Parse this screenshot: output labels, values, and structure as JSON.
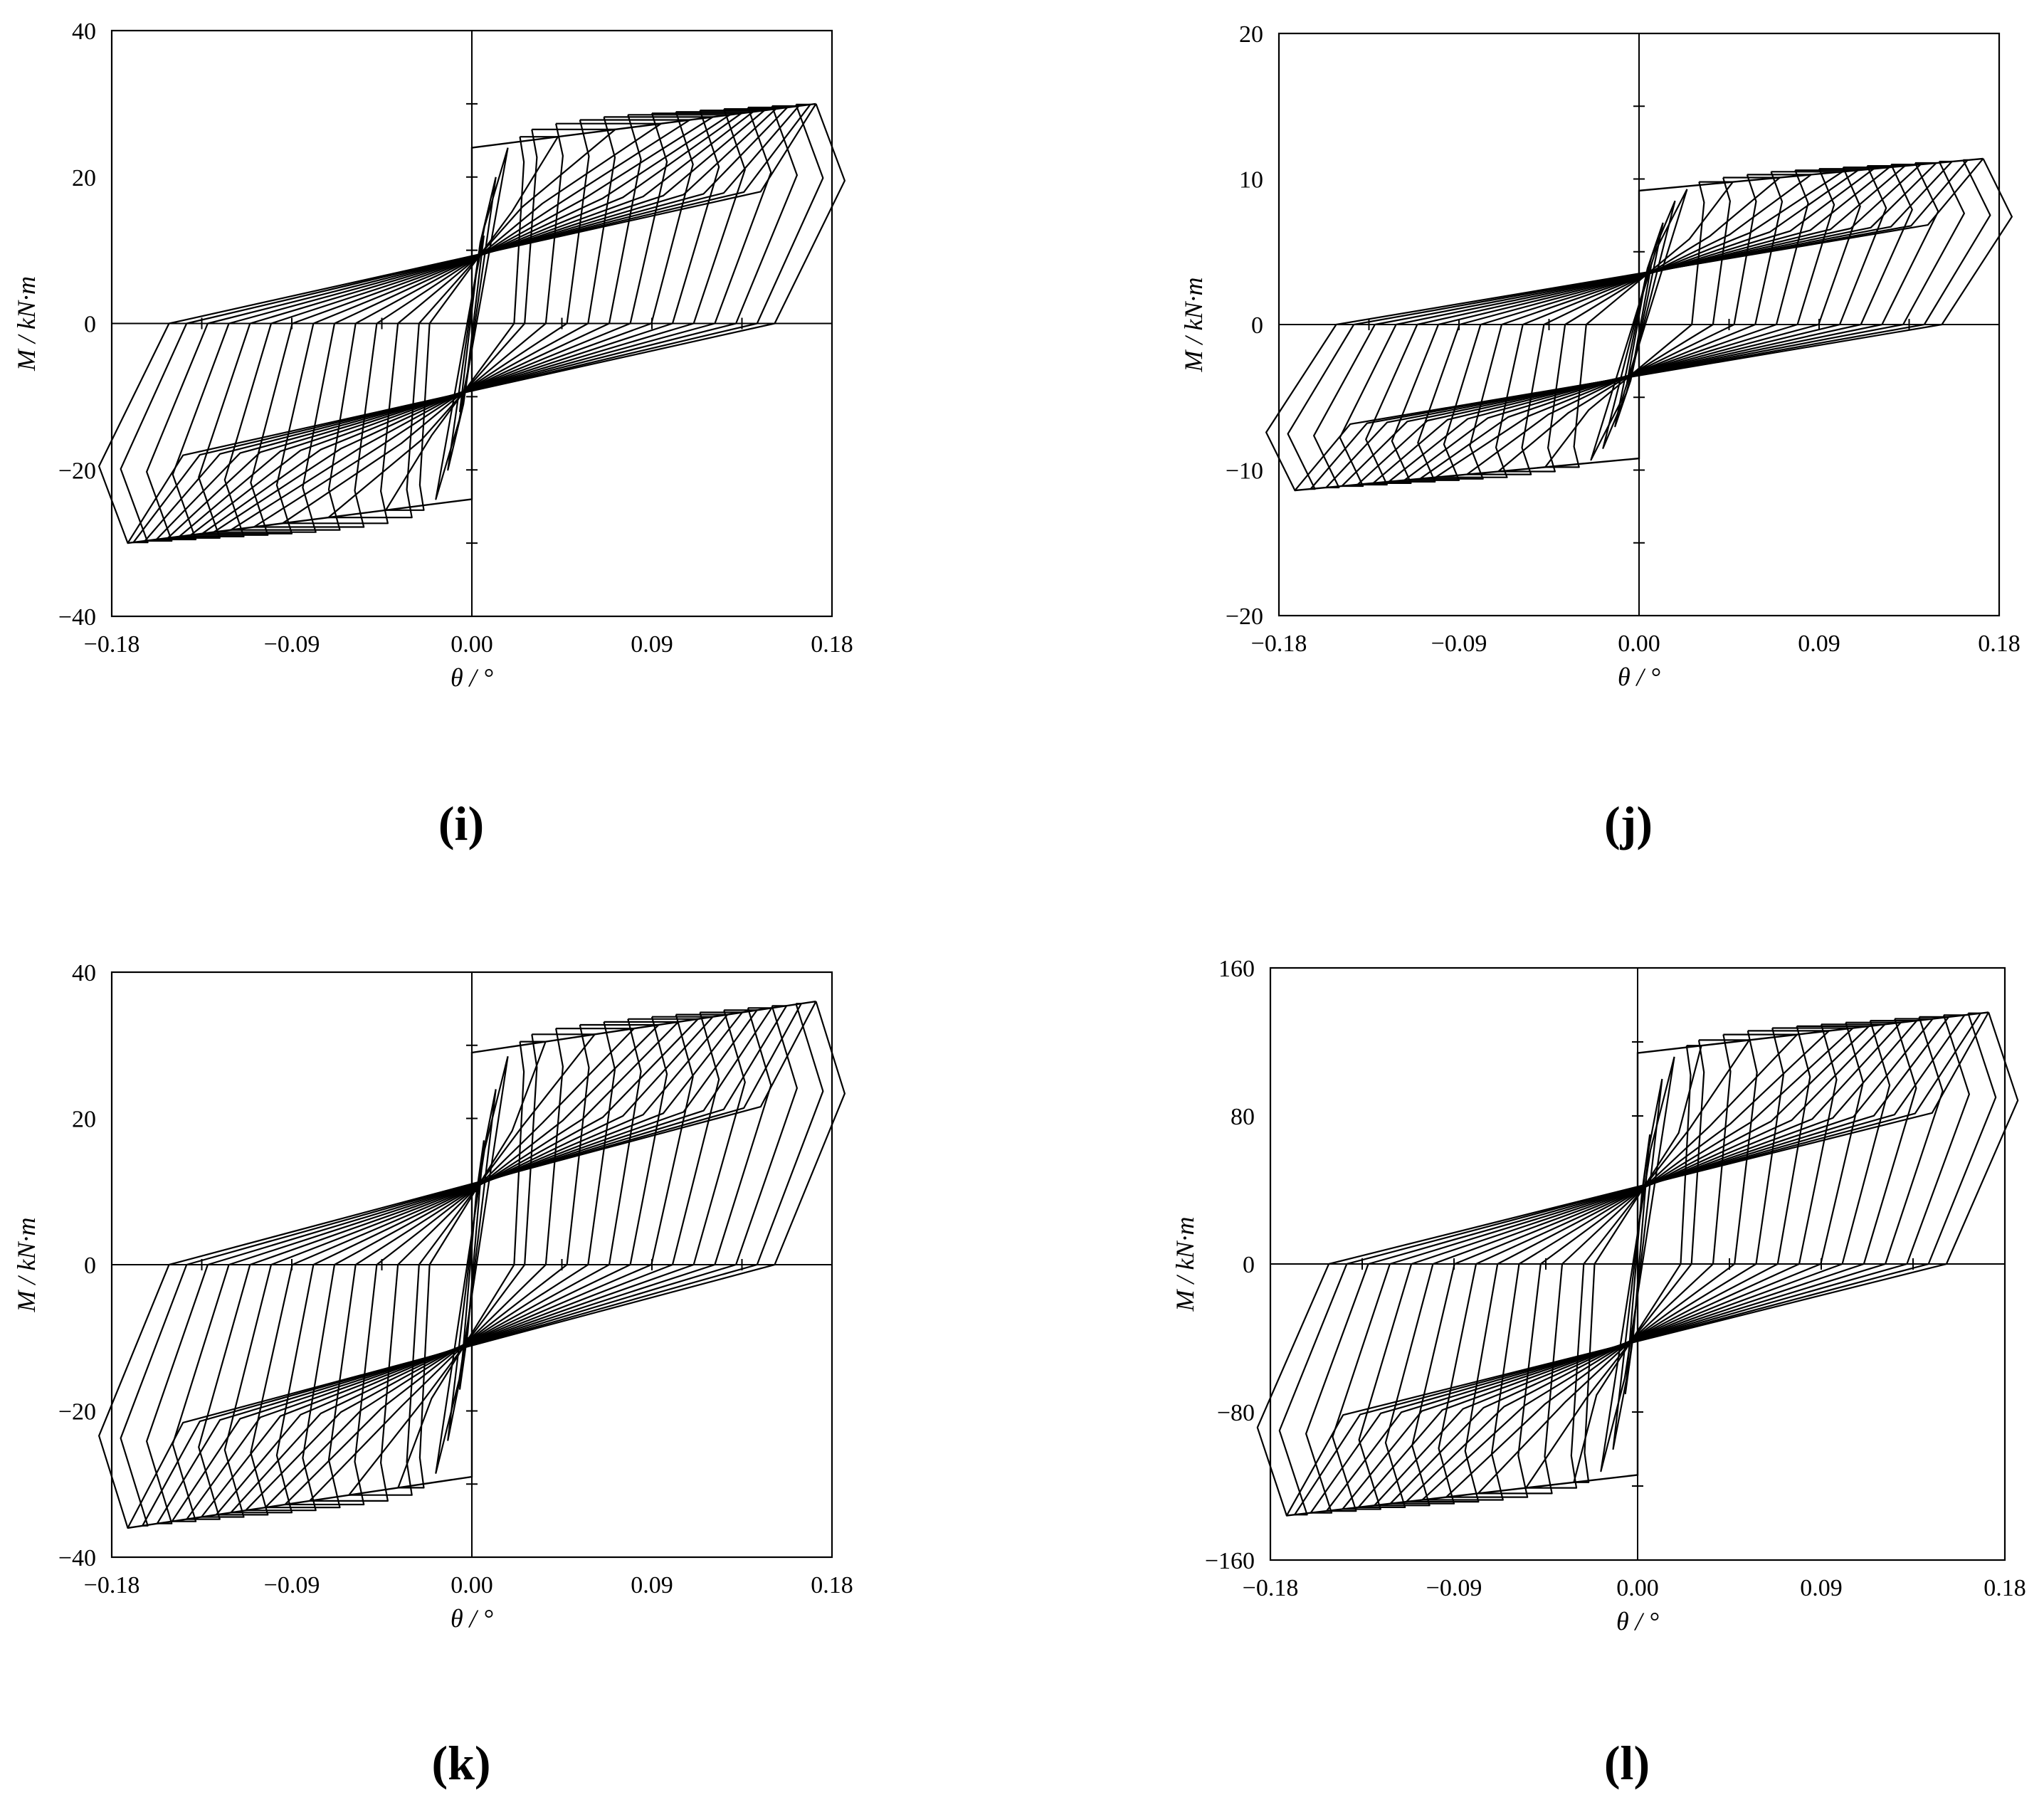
{
  "chart_data": [
    {
      "type": "line",
      "panel_label": "(i)",
      "xlabel": "θ / °",
      "ylabel": "M / kN·m",
      "xlim": [
        -0.18,
        0.18
      ],
      "ylim": [
        -40,
        40
      ],
      "x_ticks": [
        -0.18,
        -0.09,
        0.0,
        0.09,
        0.18
      ],
      "x_tick_labels": [
        "−0.18",
        "−0.09",
        "0.00",
        "0.09",
        "0.18"
      ],
      "y_ticks": [
        -40,
        -20,
        0,
        20,
        40
      ],
      "y_tick_labels": [
        "−40",
        "−20",
        "0",
        "20",
        "40"
      ],
      "grid": false,
      "loop_peak_theta": [
        0.006,
        0.012,
        0.018,
        0.024,
        0.03,
        0.042,
        0.054,
        0.066,
        0.078,
        0.09,
        0.102,
        0.114,
        0.126,
        0.138,
        0.15,
        0.162,
        0.172
      ],
      "loop_peak_moment": [
        12,
        20,
        24,
        25.5,
        26.5,
        27.3,
        27.8,
        28.2,
        28.5,
        28.7,
        28.9,
        29.1,
        29.3,
        29.5,
        29.7,
        29.9,
        30
      ],
      "yield_moment": 24,
      "skeleton_points": [
        {
          "theta": -0.172,
          "moment": -30
        },
        {
          "theta": 0.0,
          "moment": -24
        },
        {
          "theta": 0.0,
          "moment": 24
        },
        {
          "theta": 0.172,
          "moment": 30
        }
      ]
    },
    {
      "type": "line",
      "panel_label": "(j)",
      "xlabel": "θ / °",
      "ylabel": "M / kN·m",
      "xlim": [
        -0.18,
        0.18
      ],
      "ylim": [
        -20,
        20
      ],
      "x_ticks": [
        -0.18,
        -0.09,
        0.0,
        0.09,
        0.18
      ],
      "x_tick_labels": [
        "−0.18",
        "−0.09",
        "0.00",
        "0.09",
        "0.18"
      ],
      "y_ticks": [
        -20,
        -10,
        0,
        10,
        20
      ],
      "y_tick_labels": [
        "−20",
        "−10",
        "0",
        "10",
        "20"
      ],
      "grid": false,
      "loop_peak_theta": [
        0.006,
        0.012,
        0.018,
        0.024,
        0.03,
        0.042,
        0.054,
        0.066,
        0.078,
        0.09,
        0.102,
        0.114,
        0.126,
        0.138,
        0.15,
        0.162,
        0.172
      ],
      "loop_peak_moment": [
        4,
        7,
        8.5,
        9.3,
        9.8,
        10.1,
        10.3,
        10.5,
        10.6,
        10.7,
        10.8,
        10.9,
        11.0,
        11.1,
        11.2,
        11.3,
        11.4
      ],
      "yield_moment": 9.2,
      "skeleton_points": [
        {
          "theta": -0.172,
          "moment": -11.4
        },
        {
          "theta": 0.0,
          "moment": -9.2
        },
        {
          "theta": 0.0,
          "moment": 9.2
        },
        {
          "theta": 0.172,
          "moment": 11.4
        }
      ]
    },
    {
      "type": "line",
      "panel_label": "(k)",
      "xlabel": "θ / °",
      "ylabel": "M / kN·m",
      "xlim": [
        -0.18,
        0.18
      ],
      "ylim": [
        -40,
        40
      ],
      "x_ticks": [
        -0.18,
        -0.09,
        0.0,
        0.09,
        0.18
      ],
      "x_tick_labels": [
        "−0.18",
        "−0.09",
        "0.00",
        "0.09",
        "0.18"
      ],
      "y_ticks": [
        -40,
        -20,
        0,
        20,
        40
      ],
      "y_tick_labels": [
        "−40",
        "−20",
        "0",
        "20",
        "40"
      ],
      "grid": false,
      "loop_peak_theta": [
        0.006,
        0.012,
        0.018,
        0.024,
        0.03,
        0.042,
        0.054,
        0.066,
        0.078,
        0.09,
        0.102,
        0.114,
        0.126,
        0.138,
        0.15,
        0.162,
        0.172
      ],
      "loop_peak_moment": [
        17,
        24,
        28.5,
        30.5,
        31.5,
        32.3,
        32.8,
        33.2,
        33.6,
        33.9,
        34.2,
        34.5,
        34.8,
        35.1,
        35.4,
        35.7,
        36
      ],
      "yield_moment": 29,
      "skeleton_points": [
        {
          "theta": -0.172,
          "moment": -36
        },
        {
          "theta": 0.0,
          "moment": -29
        },
        {
          "theta": 0.0,
          "moment": 29
        },
        {
          "theta": 0.172,
          "moment": 36
        }
      ]
    },
    {
      "type": "line",
      "panel_label": "(l)",
      "xlabel": "θ / °",
      "ylabel": "M / kN·m",
      "xlim": [
        -0.18,
        0.18
      ],
      "ylim": [
        -160,
        160
      ],
      "x_ticks": [
        -0.18,
        -0.09,
        0.0,
        0.09,
        0.18
      ],
      "x_tick_labels": [
        "−0.18",
        "−0.09",
        "0.00",
        "0.09",
        "0.18"
      ],
      "y_ticks": [
        -160,
        -80,
        0,
        80,
        160
      ],
      "y_tick_labels": [
        "−160",
        "−80",
        "0",
        "80",
        "160"
      ],
      "grid": false,
      "loop_peak_theta": [
        0.006,
        0.012,
        0.018,
        0.024,
        0.03,
        0.042,
        0.054,
        0.066,
        0.078,
        0.09,
        0.102,
        0.114,
        0.126,
        0.138,
        0.15,
        0.162,
        0.172
      ],
      "loop_peak_moment": [
        70,
        100,
        112,
        118,
        121,
        124,
        126,
        127.5,
        128.5,
        129.5,
        130.5,
        131.5,
        132.5,
        133.5,
        134.5,
        135.5,
        136
      ],
      "yield_moment": 114,
      "skeleton_points": [
        {
          "theta": -0.172,
          "moment": -136
        },
        {
          "theta": 0.0,
          "moment": -114
        },
        {
          "theta": 0.0,
          "moment": 114
        },
        {
          "theta": 0.172,
          "moment": 136
        }
      ]
    }
  ]
}
